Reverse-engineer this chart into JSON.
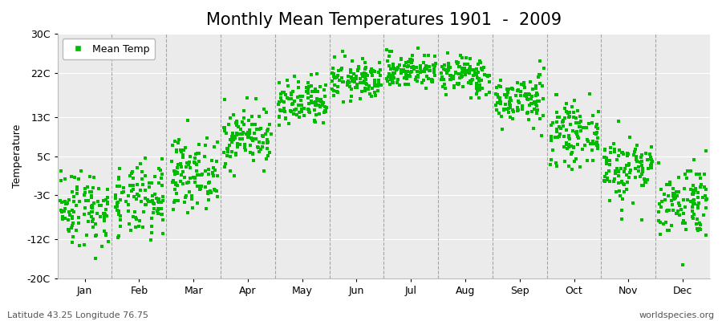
{
  "title": "Monthly Mean Temperatures 1901  -  2009",
  "ylabel": "Temperature",
  "yticks": [
    -20,
    -12,
    -3,
    5,
    13,
    22,
    30
  ],
  "ytick_labels": [
    "-20C",
    "-12C",
    "-3C",
    "5C",
    "13C",
    "22C",
    "30C"
  ],
  "ylim": [
    -20,
    30
  ],
  "months": [
    "Jan",
    "Feb",
    "Mar",
    "Apr",
    "May",
    "Jun",
    "Jul",
    "Aug",
    "Sep",
    "Oct",
    "Nov",
    "Dec"
  ],
  "dot_color": "#00BB00",
  "plot_bg_color": "#EBEBEB",
  "grid_color": "#FFFFFF",
  "dashed_color": "#888888",
  "legend_label": "Mean Temp",
  "footer_left": "Latitude 43.25 Longitude 76.75",
  "footer_right": "worldspecies.org",
  "title_fontsize": 15,
  "axis_fontsize": 9,
  "footer_fontsize": 8,
  "n_years": 109,
  "seed": 42,
  "monthly_means": [
    -5.5,
    -4.5,
    1.5,
    9.0,
    15.5,
    20.5,
    22.5,
    21.5,
    16.5,
    9.5,
    2.5,
    -4.0
  ],
  "monthly_stds": [
    4.0,
    3.8,
    3.5,
    3.0,
    2.5,
    2.0,
    1.8,
    2.0,
    2.5,
    3.0,
    3.5,
    3.8
  ]
}
